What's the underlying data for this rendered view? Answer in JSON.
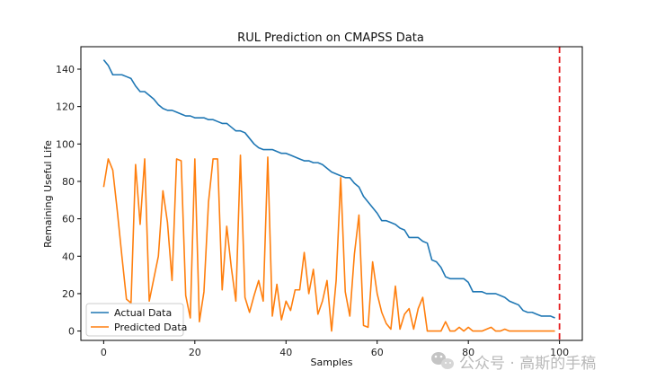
{
  "chart_data": {
    "type": "line",
    "title": "RUL Prediction on CMAPSS Data",
    "xlabel": "Samples",
    "ylabel": "Remaining Useful Life",
    "xlim": [
      -5,
      105
    ],
    "ylim": [
      -5,
      152
    ],
    "xticks": [
      0,
      20,
      40,
      60,
      80,
      100
    ],
    "yticks": [
      0,
      20,
      40,
      60,
      80,
      100,
      120,
      140
    ],
    "grid": false,
    "legend_position": "lower-left",
    "vline": {
      "x": 100,
      "color": "#e41a1c",
      "style": "dashed"
    },
    "series": [
      {
        "name": "Actual Data",
        "color": "#1f77b4",
        "x": [
          0,
          1,
          2,
          3,
          4,
          5,
          6,
          7,
          8,
          9,
          10,
          11,
          12,
          13,
          14,
          15,
          16,
          17,
          18,
          19,
          20,
          21,
          22,
          23,
          24,
          25,
          26,
          27,
          28,
          29,
          30,
          31,
          32,
          33,
          34,
          35,
          36,
          37,
          38,
          39,
          40,
          41,
          42,
          43,
          44,
          45,
          46,
          47,
          48,
          49,
          50,
          51,
          52,
          53,
          54,
          55,
          56,
          57,
          58,
          59,
          60,
          61,
          62,
          63,
          64,
          65,
          66,
          67,
          68,
          69,
          70,
          71,
          72,
          73,
          74,
          75,
          76,
          77,
          78,
          79,
          80,
          81,
          82,
          83,
          84,
          85,
          86,
          87,
          88,
          89,
          90,
          91,
          92,
          93,
          94,
          95,
          96,
          97,
          98,
          99
        ],
        "values": [
          145,
          142,
          137,
          137,
          137,
          136,
          135,
          131,
          128,
          128,
          126,
          124,
          121,
          119,
          118,
          118,
          117,
          116,
          115,
          115,
          114,
          114,
          114,
          113,
          113,
          112,
          111,
          111,
          109,
          107,
          107,
          106,
          103,
          100,
          98,
          97,
          97,
          97,
          96,
          95,
          95,
          94,
          93,
          92,
          91,
          91,
          90,
          90,
          89,
          87,
          85,
          84,
          83,
          82,
          82,
          79,
          77,
          72,
          69,
          66,
          63,
          59,
          59,
          58,
          57,
          55,
          54,
          50,
          50,
          50,
          48,
          47,
          38,
          37,
          34,
          29,
          28,
          28,
          28,
          28,
          26,
          21,
          21,
          21,
          20,
          20,
          20,
          19,
          18,
          16,
          15,
          14,
          11,
          10,
          10,
          9,
          8,
          8,
          8,
          7
        ]
      },
      {
        "name": "Predicted Data",
        "color": "#ff7f0e",
        "x": [
          0,
          1,
          2,
          3,
          4,
          5,
          6,
          7,
          8,
          9,
          10,
          11,
          12,
          13,
          14,
          15,
          16,
          17,
          18,
          19,
          20,
          21,
          22,
          23,
          24,
          25,
          26,
          27,
          28,
          29,
          30,
          31,
          32,
          33,
          34,
          35,
          36,
          37,
          38,
          39,
          40,
          41,
          42,
          43,
          44,
          45,
          46,
          47,
          48,
          49,
          50,
          51,
          52,
          53,
          54,
          55,
          56,
          57,
          58,
          59,
          60,
          61,
          62,
          63,
          64,
          65,
          66,
          67,
          68,
          69,
          70,
          71,
          72,
          73,
          74,
          75,
          76,
          77,
          78,
          79,
          80,
          81,
          82,
          83,
          84,
          85,
          86,
          87,
          88,
          89,
          90,
          91,
          92,
          93,
          94,
          95,
          96,
          97,
          98,
          99
        ],
        "values": [
          77,
          92,
          86,
          64,
          40,
          17,
          15,
          89,
          57,
          92,
          16,
          28,
          40,
          75,
          58,
          27,
          92,
          91,
          19,
          7,
          92,
          5,
          21,
          69,
          92,
          92,
          22,
          56,
          34,
          16,
          94,
          18,
          10,
          19,
          27,
          16,
          93,
          8,
          25,
          6,
          16,
          11,
          22,
          22,
          42,
          20,
          33,
          9,
          16,
          27,
          0,
          27,
          82,
          21,
          8,
          41,
          62,
          3,
          2,
          37,
          20,
          10,
          4,
          1,
          24,
          1,
          9,
          12,
          1,
          12,
          18,
          0,
          0,
          0,
          0,
          5,
          0,
          0,
          2,
          0,
          2,
          0,
          0,
          0,
          1,
          2,
          0,
          0,
          1,
          0,
          0,
          0,
          0,
          0,
          0,
          0,
          0,
          0,
          0,
          0
        ]
      }
    ]
  },
  "watermark": {
    "text": "公众号 · 高斯的手稿",
    "icon": "wechat-icon"
  }
}
